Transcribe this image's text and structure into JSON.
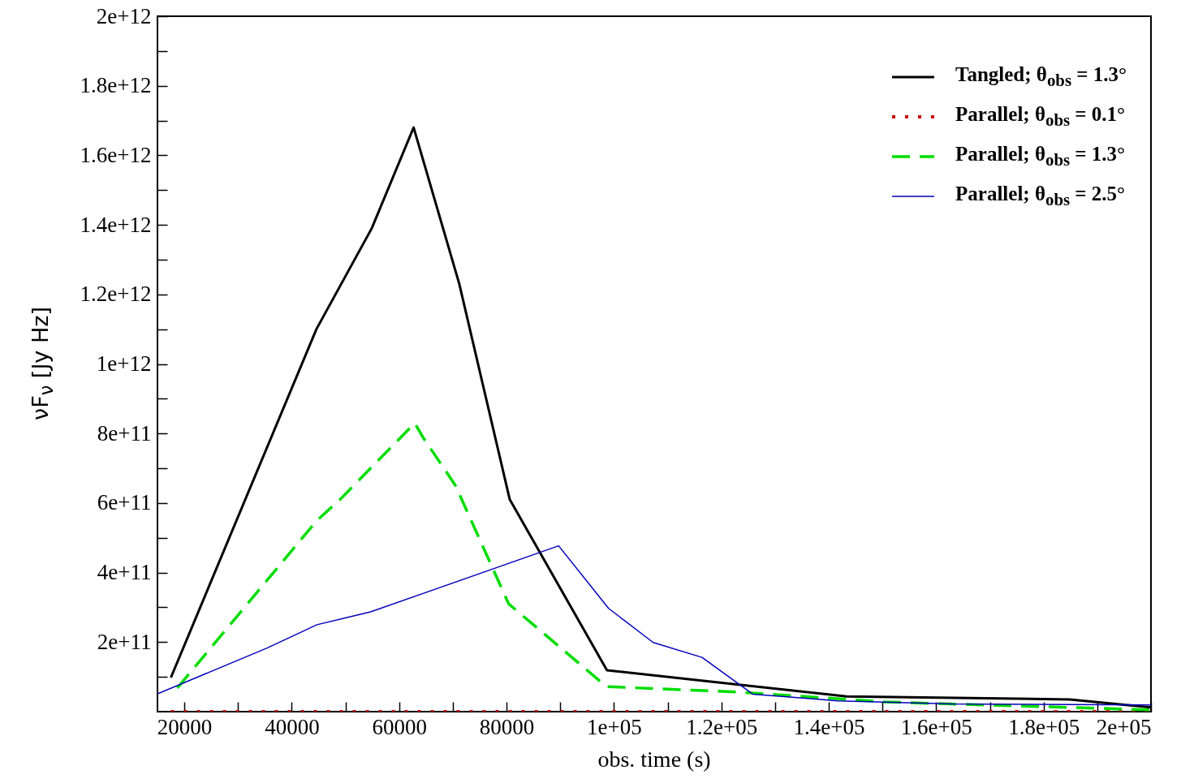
{
  "chart_data": {
    "type": "line",
    "xlabel": "obs. time (s)",
    "ylabel": "νF$_{ν}$ [Jy Hz]",
    "xlim": [
      15000,
      200000
    ],
    "ylim": [
      0,
      2000000000000.0
    ],
    "xticks": [
      20000,
      {
        "value": 30000,
        "label": null
      },
      40000,
      {
        "value": 50000,
        "label": null
      },
      60000,
      {
        "value": 70000,
        "label": null
      },
      80000,
      {
        "value": 90000,
        "label": null
      },
      {
        "value": 100000,
        "label": "1e+05"
      },
      {
        "value": 110000,
        "label": null
      },
      {
        "value": 120000,
        "label": "1.2e+05"
      },
      {
        "value": 130000,
        "label": null
      },
      {
        "value": 140000,
        "label": "1.4e+05"
      },
      {
        "value": 150000,
        "label": null
      },
      {
        "value": 160000,
        "label": "1.6e+05"
      },
      {
        "value": 170000,
        "label": null
      },
      {
        "value": 180000,
        "label": "1.8e+05"
      },
      {
        "value": 190000,
        "label": null
      },
      {
        "value": 200000,
        "label": "2e+05"
      }
    ],
    "yticks": [
      {
        "value": 100000000000.0,
        "label": null
      },
      {
        "value": 200000000000.0,
        "label": "2e+11"
      },
      {
        "value": 300000000000.0,
        "label": null
      },
      {
        "value": 400000000000.0,
        "label": "4e+11"
      },
      {
        "value": 500000000000.0,
        "label": null
      },
      {
        "value": 600000000000.0,
        "label": "6e+11"
      },
      {
        "value": 700000000000.0,
        "label": null
      },
      {
        "value": 800000000000.0,
        "label": "8e+11"
      },
      {
        "value": 900000000000.0,
        "label": null
      },
      {
        "value": 1000000000000.0,
        "label": "1e+12"
      },
      {
        "value": 1100000000000.0,
        "label": null
      },
      {
        "value": 1200000000000.0,
        "label": "1.2e+12"
      },
      {
        "value": 1300000000000.0,
        "label": null
      },
      {
        "value": 1400000000000.0,
        "label": "1.4e+12"
      },
      {
        "value": 1500000000000.0,
        "label": null
      },
      {
        "value": 1600000000000.0,
        "label": "1.6e+12"
      },
      {
        "value": 1700000000000.0,
        "label": null
      },
      {
        "value": 1800000000000.0,
        "label": "1.8e+12"
      },
      {
        "value": 1900000000000.0,
        "label": null
      },
      {
        "value": 2000000000000.0,
        "label": "2e+12"
      }
    ],
    "grid": false,
    "legend": "top right",
    "marker": "none",
    "series": [
      {
        "name": "Tangled; θ$_{obs}$ = 1.3°",
        "color": "#000000",
        "line_style": "solid",
        "x": [
          17500,
          44600,
          54900,
          62700,
          71200,
          80600,
          98700,
          118400,
          143300,
          184900,
          200000
        ],
        "values": [
          98000000000.0,
          1100000000000.0,
          1390000000000.0,
          1680000000000.0,
          1230000000000.0,
          610000000000.0,
          119000000000.0,
          86000000000.0,
          44000000000.0,
          35000000000.0,
          12000000000.0
        ]
      },
      {
        "name": "Parallel; θ$_{obs}$ = 0.1°",
        "color": "#cc0000",
        "line_style": "dotted",
        "x": [
          17500,
          200000
        ],
        "values": [
          0,
          0
        ]
      },
      {
        "name": "Parallel; θ$_{obs}$ = 1.3°",
        "color": "#00dd00",
        "line_style": "dashed",
        "x": [
          18700,
          44700,
          49000,
          62900,
          64400,
          70500,
          80400,
          98600,
          123500,
          150400,
          200000
        ],
        "values": [
          68000000000.0,
          550000000000.0,
          610000000000.0,
          830000000000.0,
          790000000000.0,
          650000000000.0,
          310000000000.0,
          72000000000.0,
          56000000000.0,
          28000000000.0,
          5000000000.0
        ]
      },
      {
        "name": "Parallel; θ$_{obs}$ = 2.5°",
        "color": "#0000bb",
        "line_style": "solid",
        "x": [
          15000,
          35400,
          44700,
          54700,
          89700,
          99000,
          107300,
          116400,
          125900,
          141700,
          163000,
          200000
        ],
        "values": [
          51000000000.0,
          183000000000.0,
          250000000000.0,
          287000000000.0,
          477000000000.0,
          297000000000.0,
          199000000000.0,
          156000000000.0,
          50000000000.0,
          31000000000.0,
          22000000000.0,
          19000000000.0
        ]
      }
    ]
  }
}
